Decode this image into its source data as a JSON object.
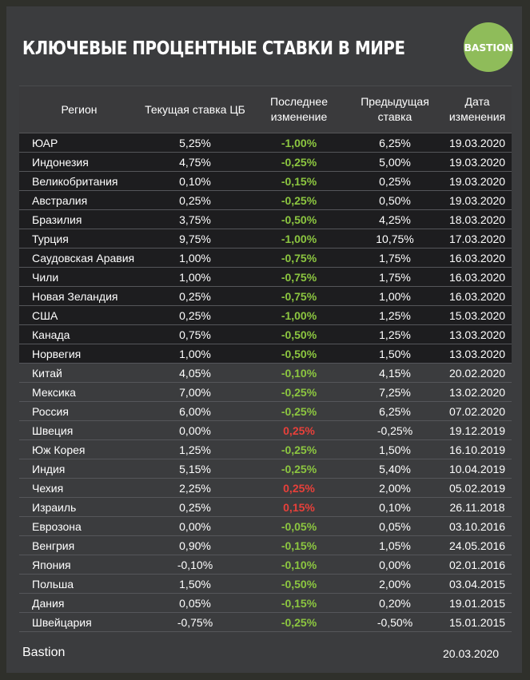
{
  "title": "КЛЮЧЕВЫЕ ПРОЦЕНТНЫЕ СТАВКИ В МИРЕ",
  "logo_text": "BASTION",
  "columns": {
    "region": "Регион",
    "current": "Текущая ставка ЦБ",
    "change": "Последнее изменение",
    "previous": "Предыдущая ставка",
    "date": "Дата изменения"
  },
  "rows": [
    {
      "region": "ЮАР",
      "current": "5,25%",
      "change": "-1,00%",
      "previous": "6,25%",
      "date": "19.03.2020",
      "shade": "dark",
      "dir": "neg"
    },
    {
      "region": "Индонезия",
      "current": "4,75%",
      "change": "-0,25%",
      "previous": "5,00%",
      "date": "19.03.2020",
      "shade": "dark",
      "dir": "neg"
    },
    {
      "region": "Великобритания",
      "current": "0,10%",
      "change": "-0,15%",
      "previous": "0,25%",
      "date": "19.03.2020",
      "shade": "dark",
      "dir": "neg"
    },
    {
      "region": "Австралия",
      "current": "0,25%",
      "change": "-0,25%",
      "previous": "0,50%",
      "date": "19.03.2020",
      "shade": "dark",
      "dir": "neg"
    },
    {
      "region": "Бразилия",
      "current": "3,75%",
      "change": "-0,50%",
      "previous": "4,25%",
      "date": "18.03.2020",
      "shade": "dark",
      "dir": "neg"
    },
    {
      "region": "Турция",
      "current": "9,75%",
      "change": "-1,00%",
      "previous": "10,75%",
      "date": "17.03.2020",
      "shade": "dark",
      "dir": "neg"
    },
    {
      "region": "Саудовская Аравия",
      "current": "1,00%",
      "change": "-0,75%",
      "previous": "1,75%",
      "date": "16.03.2020",
      "shade": "dark",
      "dir": "neg"
    },
    {
      "region": "Чили",
      "current": "1,00%",
      "change": "-0,75%",
      "previous": "1,75%",
      "date": "16.03.2020",
      "shade": "dark",
      "dir": "neg"
    },
    {
      "region": "Новая Зеландия",
      "current": "0,25%",
      "change": "-0,75%",
      "previous": "1,00%",
      "date": "16.03.2020",
      "shade": "dark",
      "dir": "neg"
    },
    {
      "region": "США",
      "current": "0,25%",
      "change": "-1,00%",
      "previous": "1,25%",
      "date": "15.03.2020",
      "shade": "dark",
      "dir": "neg"
    },
    {
      "region": "Канада",
      "current": "0,75%",
      "change": "-0,50%",
      "previous": "1,25%",
      "date": "13.03.2020",
      "shade": "dark",
      "dir": "neg"
    },
    {
      "region": "Норвегия",
      "current": "1,00%",
      "change": "-0,50%",
      "previous": "1,50%",
      "date": "13.03.2020",
      "shade": "dark",
      "dir": "neg"
    },
    {
      "region": "Китай",
      "current": "4,05%",
      "change": "-0,10%",
      "previous": "4,15%",
      "date": "20.02.2020",
      "shade": "light",
      "dir": "neg"
    },
    {
      "region": "Мексика",
      "current": "7,00%",
      "change": "-0,25%",
      "previous": "7,25%",
      "date": "13.02.2020",
      "shade": "light",
      "dir": "neg"
    },
    {
      "region": "Россия",
      "current": "6,00%",
      "change": "-0,25%",
      "previous": "6,25%",
      "date": "07.02.2020",
      "shade": "light",
      "dir": "neg"
    },
    {
      "region": "Швеция",
      "current": "0,00%",
      "change": "0,25%",
      "previous": "-0,25%",
      "date": "19.12.2019",
      "shade": "light",
      "dir": "pos"
    },
    {
      "region": "Юж Корея",
      "current": "1,25%",
      "change": "-0,25%",
      "previous": "1,50%",
      "date": "16.10.2019",
      "shade": "light",
      "dir": "neg"
    },
    {
      "region": "Индия",
      "current": "5,15%",
      "change": "-0,25%",
      "previous": "5,40%",
      "date": "10.04.2019",
      "shade": "light",
      "dir": "neg"
    },
    {
      "region": "Чехия",
      "current": "2,25%",
      "change": "0,25%",
      "previous": "2,00%",
      "date": "05.02.2019",
      "shade": "light",
      "dir": "pos"
    },
    {
      "region": "Израиль",
      "current": "0,25%",
      "change": "0,15%",
      "previous": "0,10%",
      "date": "26.11.2018",
      "shade": "light",
      "dir": "pos"
    },
    {
      "region": "Еврозона",
      "current": "0,00%",
      "change": "-0,05%",
      "previous": "0,05%",
      "date": "03.10.2016",
      "shade": "light",
      "dir": "neg"
    },
    {
      "region": "Венгрия",
      "current": "0,90%",
      "change": "-0,15%",
      "previous": "1,05%",
      "date": "24.05.2016",
      "shade": "light",
      "dir": "neg"
    },
    {
      "region": "Япония",
      "current": "-0,10%",
      "change": "-0,10%",
      "previous": "0,00%",
      "date": "02.01.2016",
      "shade": "light",
      "dir": "neg"
    },
    {
      "region": "Польша",
      "current": "1,50%",
      "change": "-0,50%",
      "previous": "2,00%",
      "date": "03.04.2015",
      "shade": "light",
      "dir": "neg"
    },
    {
      "region": "Дания",
      "current": "0,05%",
      "change": "-0,15%",
      "previous": "0,20%",
      "date": "19.01.2015",
      "shade": "light",
      "dir": "neg"
    },
    {
      "region": "Швейцария",
      "current": "-0,75%",
      "change": "-0,25%",
      "previous": "-0,50%",
      "date": "15.01.2015",
      "shade": "light",
      "dir": "neg"
    }
  ],
  "footer": {
    "brand": "Bastion",
    "date": "20.03.2020"
  },
  "colors": {
    "negative_change": "#8cc640",
    "positive_change": "#e8403a",
    "logo": "#8fbc5a"
  }
}
